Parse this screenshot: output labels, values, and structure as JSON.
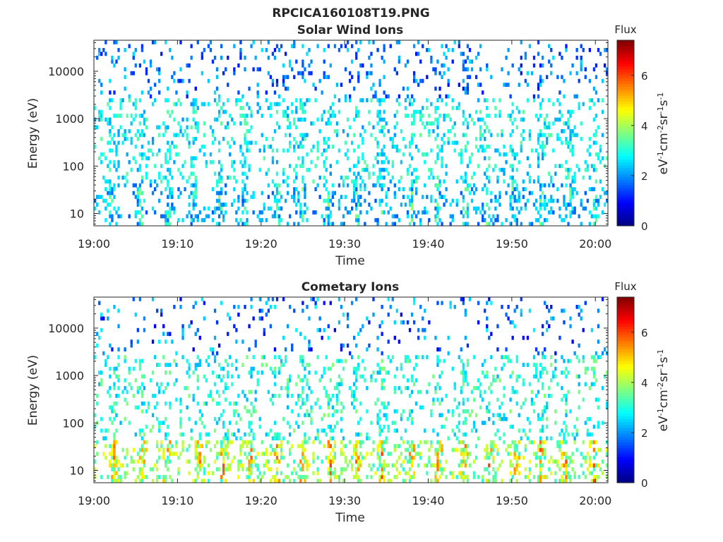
{
  "figure": {
    "title": "RPCICA160108T19.PNG"
  },
  "chart_data": [
    {
      "type": "heatmap",
      "title": "Solar Wind Ions",
      "xlabel": "Time",
      "ylabel": "Energy (eV)",
      "x_ticks": [
        "19:00",
        "19:10",
        "19:20",
        "19:30",
        "19:40",
        "19:50",
        "20:00"
      ],
      "x_range_minutes": [
        0,
        61.5
      ],
      "y_ticks": [
        "10",
        "100",
        "1000",
        "10000"
      ],
      "y_scale": "log",
      "y_range": [
        5.5,
        45000
      ],
      "colorbar": {
        "title": "Flux",
        "label": "eV-1cm-2sr-1s-1",
        "label_parts": [
          "eV",
          "-1",
          "cm",
          "-2",
          "sr",
          "-1",
          "s",
          "-1"
        ],
        "ticks": [
          "0",
          "2",
          "4",
          "6"
        ],
        "range": [
          0,
          7.4
        ],
        "colormap": "jet"
      },
      "pattern": {
        "seed": 7,
        "density_low": 0.6,
        "density_mid": 0.35,
        "density_high": 0.12,
        "value_low": [
          1.5,
          4.0
        ],
        "value_mid": [
          2.0,
          3.5
        ],
        "value_high": [
          1.0,
          2.6
        ],
        "bursts_minutes": [
          2,
          5.5,
          9,
          12,
          15,
          18,
          22,
          25,
          28,
          31.5,
          34.5,
          38,
          41,
          44.5,
          47,
          50,
          53.5,
          57,
          60
        ]
      }
    },
    {
      "type": "heatmap",
      "title": "Cometary Ions",
      "xlabel": "Time",
      "ylabel": "Energy (eV)",
      "x_ticks": [
        "19:00",
        "19:10",
        "19:20",
        "19:30",
        "19:40",
        "19:50",
        "20:00"
      ],
      "x_range_minutes": [
        0,
        61.5
      ],
      "y_ticks": [
        "10",
        "100",
        "1000",
        "10000"
      ],
      "y_scale": "log",
      "y_range": [
        5.5,
        45000
      ],
      "colorbar": {
        "title": "Flux",
        "label": "eV-1cm-2sr-1s-1",
        "label_parts": [
          "eV",
          "-1",
          "cm",
          "-2",
          "sr",
          "-1",
          "s",
          "-1"
        ],
        "ticks": [
          "0",
          "2",
          "4",
          "6"
        ],
        "range": [
          0,
          7.4
        ],
        "colormap": "jet"
      },
      "pattern": {
        "seed": 19,
        "density_low": 0.75,
        "density_mid": 0.3,
        "density_high": 0.08,
        "value_low": [
          3.0,
          6.2
        ],
        "value_mid": [
          2.2,
          3.8
        ],
        "value_high": [
          0.8,
          2.8
        ],
        "bursts_minutes": [
          2.5,
          5.8,
          8.8,
          12.5,
          15.5,
          18.7,
          22.0,
          25.0,
          28.3,
          31.5,
          34.5,
          38.0,
          41.3,
          44.3,
          47.3,
          50.5,
          53.5,
          56.5,
          59.8
        ]
      }
    }
  ]
}
